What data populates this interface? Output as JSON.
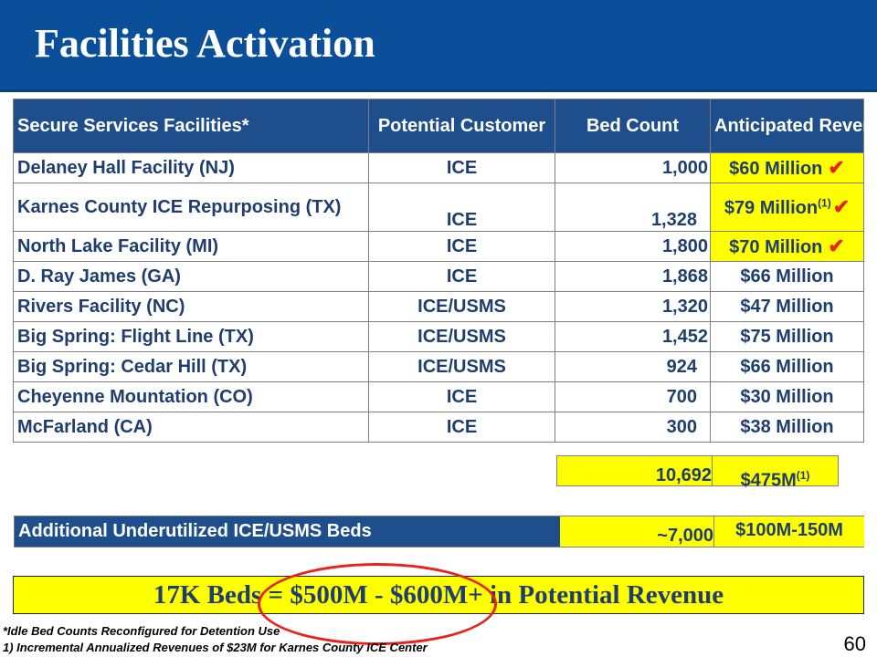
{
  "header": {
    "title": "Facilities Activation"
  },
  "table": {
    "columns": [
      "Secure Services Facilities*",
      "Potential Customer",
      "Bed Count",
      "Anticipated Revenues"
    ],
    "rows": [
      {
        "facility": "Delaney Hall Facility (NJ)",
        "customer": "ICE",
        "beds": "1,000",
        "revenue": "$60 Million",
        "checked": true,
        "note": ""
      },
      {
        "facility": "Karnes County ICE Repurposing (TX)",
        "customer": "ICE",
        "beds": "1,328",
        "revenue": "$79 Million",
        "checked": true,
        "note": "(1)"
      },
      {
        "facility": "North Lake Facility (MI)",
        "customer": "ICE",
        "beds": "1,800",
        "revenue": "$70 Million",
        "checked": true,
        "note": ""
      },
      {
        "facility": "D. Ray James (GA)",
        "customer": "ICE",
        "beds": "1,868",
        "revenue": "$66 Million",
        "checked": false,
        "note": ""
      },
      {
        "facility": "Rivers Facility (NC)",
        "customer": "ICE/USMS",
        "beds": "1,320",
        "revenue": "$47 Million",
        "checked": false,
        "note": ""
      },
      {
        "facility": "Big Spring: Flight Line (TX)",
        "customer": "ICE/USMS",
        "beds": "1,452",
        "revenue": "$75 Million",
        "checked": false,
        "note": ""
      },
      {
        "facility": "Big Spring: Cedar Hill (TX)",
        "customer": "ICE/USMS",
        "beds": "924",
        "revenue": "$66 Million",
        "checked": false,
        "note": ""
      },
      {
        "facility": "Cheyenne Mountation (CO)",
        "customer": "ICE",
        "beds": "700",
        "revenue": "$30 Million",
        "checked": false,
        "note": ""
      },
      {
        "facility": "McFarland (CA)",
        "customer": "ICE",
        "beds": "300",
        "revenue": "$38 Million",
        "checked": false,
        "note": ""
      }
    ],
    "total": {
      "beds": "10,692",
      "revenue": "$475M",
      "note": "(1)"
    }
  },
  "additional": {
    "label": "Additional Underutilized ICE/USMS Beds",
    "beds": "~7,000",
    "revenue": "$100M-150M"
  },
  "banner": {
    "text": "17K Beds = $500M - $600M+ in Potential Revenue"
  },
  "footnotes": [
    "*Idle Bed Counts Reconfigured for Detention Use",
    "1) Incremental Annualized Revenues of $23M for Karnes County ICE Center"
  ],
  "page_number": "60",
  "icons": {
    "check": "checkmark-icon"
  },
  "colors": {
    "header_bg": "#0b4f9a",
    "table_header_bg": "#1f4e8c",
    "highlight": "#ffff00",
    "check": "#e8231b",
    "text": "#1f3e6e"
  }
}
